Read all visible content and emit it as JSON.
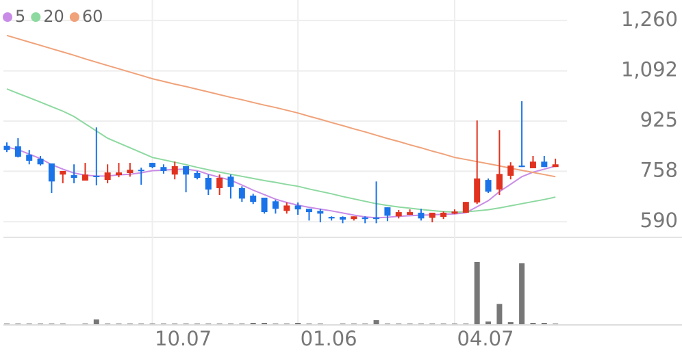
{
  "chart_data": {
    "type": "candlestick",
    "categories": [
      null,
      null,
      null,
      null,
      null,
      null,
      null,
      null,
      null,
      null,
      null,
      null,
      null,
      "10.07",
      null,
      null,
      null,
      null,
      null,
      null,
      null,
      null,
      null,
      null,
      null,
      null,
      "01.06",
      null,
      null,
      null,
      null,
      null,
      null,
      null,
      null,
      null,
      null,
      null,
      null,
      null,
      "04.07",
      null,
      null,
      null,
      null,
      null,
      null,
      null,
      null,
      null
    ],
    "open": [
      843,
      841,
      813,
      800,
      784,
      747,
      745,
      727,
      743,
      729,
      745,
      752,
      763,
      786,
      772,
      747,
      775,
      752,
      736,
      702,
      740,
      702,
      677,
      670,
      658,
      626,
      644,
      633,
      626,
      606,
      606,
      599,
      604,
      604,
      638,
      608,
      613,
      620,
      603,
      606,
      617,
      620,
      654,
      729,
      697,
      743,
      777,
      768,
      790,
      772
    ],
    "high": [
      854,
      868,
      829,
      809,
      784,
      759,
      781,
      786,
      904,
      781,
      786,
      786,
      770,
      786,
      781,
      790,
      775,
      759,
      747,
      747,
      747,
      708,
      683,
      670,
      663,
      654,
      654,
      633,
      633,
      608,
      608,
      608,
      608,
      724,
      638,
      629,
      631,
      633,
      620,
      624,
      631,
      656,
      927,
      734,
      895,
      788,
      991,
      809,
      809,
      800
    ],
    "low": [
      822,
      804,
      781,
      777,
      686,
      718,
      718,
      727,
      711,
      718,
      738,
      740,
      713,
      768,
      750,
      731,
      688,
      731,
      679,
      679,
      667,
      656,
      649,
      617,
      617,
      617,
      613,
      594,
      588,
      594,
      585,
      594,
      585,
      585,
      592,
      601,
      613,
      594,
      588,
      599,
      615,
      620,
      649,
      686,
      679,
      731,
      772,
      768,
      772,
      772
    ],
    "close": [
      829,
      806,
      793,
      781,
      724,
      759,
      736,
      747,
      739,
      754,
      754,
      763,
      759,
      772,
      759,
      775,
      747,
      736,
      697,
      736,
      706,
      667,
      656,
      622,
      633,
      644,
      631,
      622,
      617,
      601,
      597,
      608,
      599,
      599,
      610,
      622,
      622,
      601,
      620,
      620,
      624,
      656,
      734,
      690,
      749,
      777,
      772,
      790,
      772,
      781
    ],
    "up_color": "#e0321f",
    "down_color": "#1a73e8",
    "series": [
      {
        "name": "5",
        "color": "#c98ce6",
        "values": [
          838,
          830,
          815,
          800,
          780,
          765,
          752,
          745,
          742,
          742,
          746,
          748,
          753,
          760,
          762,
          764,
          765,
          760,
          748,
          738,
          728,
          712,
          695,
          680,
          665,
          654,
          645,
          638,
          632,
          626,
          619,
          612,
          606,
          603,
          605,
          608,
          610,
          612,
          613,
          615,
          616,
          620,
          640,
          660,
          690,
          715,
          740,
          755,
          765,
          775
        ]
      },
      {
        "name": "20",
        "color": "#8dd9a0",
        "values": [
          1032,
          1017,
          1003,
          988,
          973,
          958,
          940,
          916,
          892,
          868,
          852,
          836,
          820,
          804,
          796,
          788,
          780,
          771,
          763,
          755,
          748,
          741,
          734,
          727,
          721,
          714,
          708,
          699,
          691,
          683,
          674,
          666,
          658,
          650,
          644,
          639,
          635,
          631,
          627,
          624,
          622,
          623,
          626,
          630,
          636,
          643,
          650,
          657,
          664,
          672
        ]
      },
      {
        "name": "60",
        "color": "#f0a27a",
        "values": [
          1210,
          1199,
          1188,
          1177,
          1166,
          1155,
          1144,
          1132,
          1121,
          1110,
          1099,
          1088,
          1077,
          1066,
          1057,
          1048,
          1040,
          1031,
          1022,
          1013,
          1004,
          996,
          987,
          978,
          970,
          961,
          952,
          941,
          931,
          920,
          910,
          899,
          889,
          878,
          867,
          857,
          846,
          836,
          825,
          815,
          804,
          797,
          790,
          783,
          776,
          768,
          761,
          754,
          747,
          740
        ]
      }
    ],
    "volume": [
      1,
      1,
      1,
      1,
      1,
      1,
      0,
      1,
      7,
      1,
      1,
      1,
      1,
      1,
      1,
      1,
      1,
      1,
      1,
      1,
      1,
      1,
      2,
      2,
      1,
      1,
      2,
      1,
      1,
      0,
      1,
      1,
      1,
      6,
      1,
      1,
      1,
      1,
      1,
      1,
      1,
      1,
      92,
      4,
      30,
      3,
      90,
      2,
      2,
      1
    ],
    "volume_color": "#777777",
    "volume_lim": [
      0,
      100
    ],
    "ylim": [
      538,
      1328
    ],
    "yticks": [
      {
        "value": 1260,
        "label": "1,260"
      },
      {
        "value": 1092,
        "label": "1,092"
      },
      925,
      758,
      590
    ],
    "grid": true
  }
}
